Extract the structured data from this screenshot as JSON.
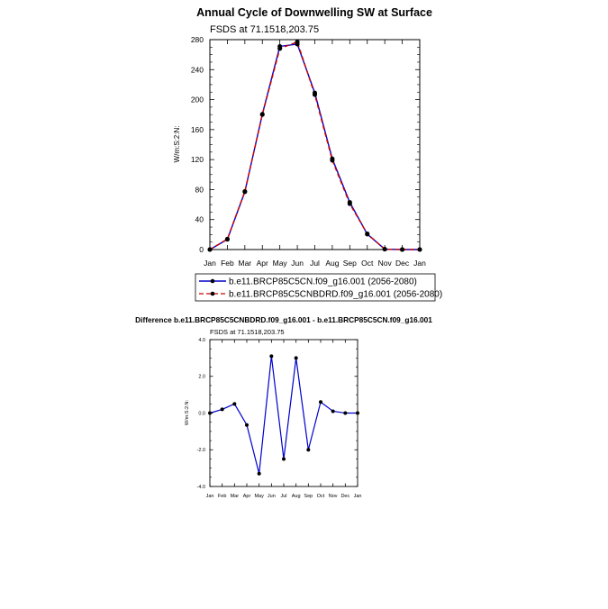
{
  "chart_data": [
    {
      "type": "line",
      "title": "Annual Cycle of Downwelling SW at Surface",
      "subtitle": "FSDS at 71.1518,203.75",
      "ylabel": "W/m:S:2:N:",
      "xlabel": "",
      "categories": [
        "Jan",
        "Feb",
        "Mar",
        "Apr",
        "May",
        "Jun",
        "Jul",
        "Aug",
        "Sep",
        "Oct",
        "Nov",
        "Dec",
        "Jan"
      ],
      "ylim": [
        0,
        280
      ],
      "yticks": [
        "0",
        "40",
        "80",
        "120",
        "160",
        "200",
        "240",
        "280"
      ],
      "grid": false,
      "legend_position": "bottom",
      "series": [
        {
          "name": "b.e11.BRCP85C5CN.f09_g16.001 (2056-2080)",
          "color": "#0000cc",
          "style": "solid",
          "values": [
            0,
            13.5,
            77,
            180.5,
            271,
            274,
            209,
            121,
            63,
            20.5,
            0.5,
            0,
            0
          ]
        },
        {
          "name": "b.e11.BRCP85C5CNBDRD.f09_g16.001 (2056-2080)",
          "color": "#cc0000",
          "style": "dashed",
          "values": [
            0,
            14,
            77.5,
            180,
            268,
            277,
            206.5,
            119,
            61,
            21,
            0.5,
            0,
            0
          ]
        }
      ]
    },
    {
      "type": "line",
      "title": "Difference b.e11.BRCP85C5CNBDRD.f09_g16.001 - b.e11.BRCP85C5CN.f09_g16.001",
      "subtitle": "FSDS at 71.1518,203.75",
      "ylabel": "W/m:S:2:N:",
      "xlabel": "",
      "categories": [
        "Jan",
        "Feb",
        "Mar",
        "Apr",
        "May",
        "Jun",
        "Jul",
        "Aug",
        "Sep",
        "Oct",
        "Nov",
        "Dec",
        "Jan"
      ],
      "ylim": [
        -4,
        4
      ],
      "yticks": [
        "-4.0",
        "-2.0",
        "0.0",
        "2.0",
        "4.0"
      ],
      "grid": false,
      "series": [
        {
          "color": "#0000cc",
          "values": [
            0,
            0.2,
            0.5,
            -0.65,
            -3.3,
            3.1,
            -2.5,
            3.0,
            -2.0,
            0.6,
            0.1,
            0,
            0
          ]
        }
      ]
    }
  ]
}
